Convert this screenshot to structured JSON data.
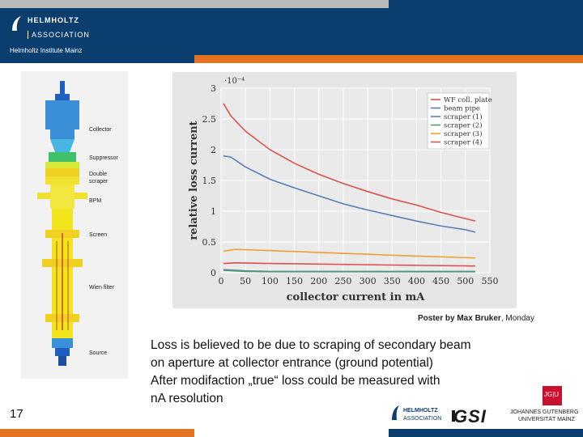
{
  "header": {
    "logo_line1": "HELMHOLTZ",
    "logo_line2": "ASSOCIATION",
    "institute": "Helmholtz Institute Mainz",
    "colors": {
      "navy": "#0b3d6e",
      "orange": "#e37222",
      "grey": "#b9b9b9"
    }
  },
  "diagram": {
    "labels": [
      "Collector",
      "Suppressor",
      "Double",
      "scraper",
      "BPM",
      "Screen",
      "Wien filter",
      "Source"
    ]
  },
  "caption": {
    "bold": "Poster by Max Bruker",
    "rest": ", Monday"
  },
  "body": {
    "lines": [
      "Loss is believed to be due to scraping of secondary beam",
      "on aperture at collector entrance (ground potential)",
      "After modifaction „true“ loss could  be measured  with",
      "nA  resolution"
    ]
  },
  "page_number": "17",
  "footer": {
    "helmholtz_line1": "HELMHOLTZ",
    "helmholtz_line2": "ASSOCIATION",
    "gsi": "GSI",
    "jgu_box": "JG|U",
    "jgu_line1": "JOHANNES GUTENBERG",
    "jgu_line2": "UNIVERSITÄT MAINZ"
  },
  "chart_data": {
    "type": "line",
    "xlabel": "collector current in mA",
    "ylabel": "relative loss current",
    "y_exponent": "·10⁻⁴",
    "xlim": [
      0,
      550
    ],
    "ylim": [
      0,
      3
    ],
    "xticks": [
      0,
      50,
      100,
      150,
      200,
      250,
      300,
      350,
      400,
      450,
      500,
      550
    ],
    "yticks": [
      0,
      0.5,
      1,
      1.5,
      2,
      2.5,
      3
    ],
    "ytick_labels": [
      "0",
      "0.5",
      "1",
      "1.5",
      "2",
      "2.5",
      "3"
    ],
    "grid": true,
    "legend_position": "top-right",
    "series": [
      {
        "name": "WF coll. plate",
        "color": "#d9534f",
        "x": [
          5,
          20,
          50,
          100,
          150,
          200,
          250,
          300,
          350,
          400,
          450,
          500,
          520
        ],
        "y": [
          2.75,
          2.55,
          2.3,
          2.0,
          1.78,
          1.6,
          1.45,
          1.32,
          1.2,
          1.1,
          0.98,
          0.88,
          0.84
        ]
      },
      {
        "name": "beam pipe",
        "color": "#5a7fb6",
        "x": [
          5,
          20,
          50,
          100,
          150,
          200,
          250,
          300,
          350,
          400,
          450,
          500,
          520
        ],
        "y": [
          1.9,
          1.88,
          1.72,
          1.52,
          1.38,
          1.25,
          1.12,
          1.02,
          0.93,
          0.84,
          0.76,
          0.7,
          0.66
        ]
      },
      {
        "name": "scraper (1)",
        "color": "#5a7fb6",
        "x": [
          5,
          50,
          100,
          200,
          300,
          400,
          520
        ],
        "y": [
          0.05,
          0.03,
          0.02,
          0.02,
          0.02,
          0.02,
          0.02
        ]
      },
      {
        "name": "scraper (2)",
        "color": "#4c9a6a",
        "x": [
          5,
          50,
          100,
          200,
          300,
          400,
          520
        ],
        "y": [
          0.04,
          0.02,
          0.015,
          0.015,
          0.015,
          0.015,
          0.015
        ]
      },
      {
        "name": "scraper (3)",
        "color": "#f0a030",
        "x": [
          5,
          30,
          100,
          200,
          300,
          400,
          520
        ],
        "y": [
          0.35,
          0.38,
          0.36,
          0.33,
          0.3,
          0.27,
          0.24
        ]
      },
      {
        "name": "scraper (4)",
        "color": "#d9534f",
        "x": [
          5,
          30,
          100,
          200,
          300,
          400,
          520
        ],
        "y": [
          0.15,
          0.16,
          0.15,
          0.14,
          0.13,
          0.12,
          0.11
        ]
      }
    ]
  }
}
